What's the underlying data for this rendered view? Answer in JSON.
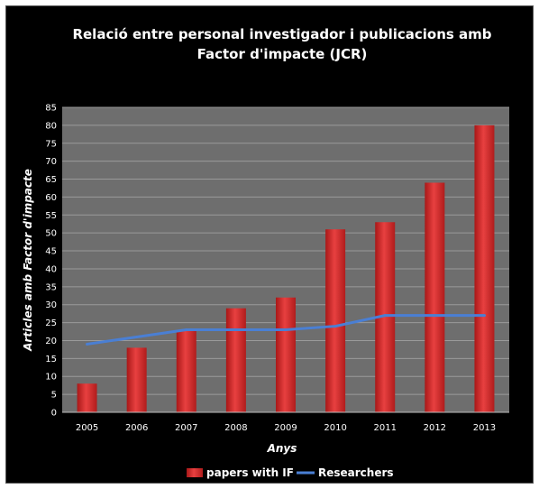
{
  "chart_data": {
    "type": "bar",
    "title_lines": [
      "Relació entre personal investigador i publicacions amb",
      "Factor d'impacte (JCR)"
    ],
    "xlabel": "Anys",
    "ylabel": "Articles amb Factor d'impacte",
    "categories": [
      "2005",
      "2006",
      "2007",
      "2008",
      "2009",
      "2010",
      "2011",
      "2012",
      "2013"
    ],
    "ylim": [
      0,
      85
    ],
    "ytick_step": 5,
    "grid": true,
    "legend_position": "bottom",
    "series": [
      {
        "name": "papers with IF",
        "type": "bar",
        "color": "#d62b2b",
        "values": [
          8,
          18,
          23,
          29,
          32,
          51,
          53,
          64,
          80
        ]
      },
      {
        "name": "Researchers",
        "type": "line",
        "color": "#4a7fd4",
        "values": [
          19,
          21,
          23,
          23,
          23,
          24,
          27,
          27,
          27
        ]
      }
    ]
  },
  "colors": {
    "background": "#000000",
    "plot_background": "#6e6e6e",
    "gridline": "#9a9a9a",
    "text": "#ffffff"
  }
}
